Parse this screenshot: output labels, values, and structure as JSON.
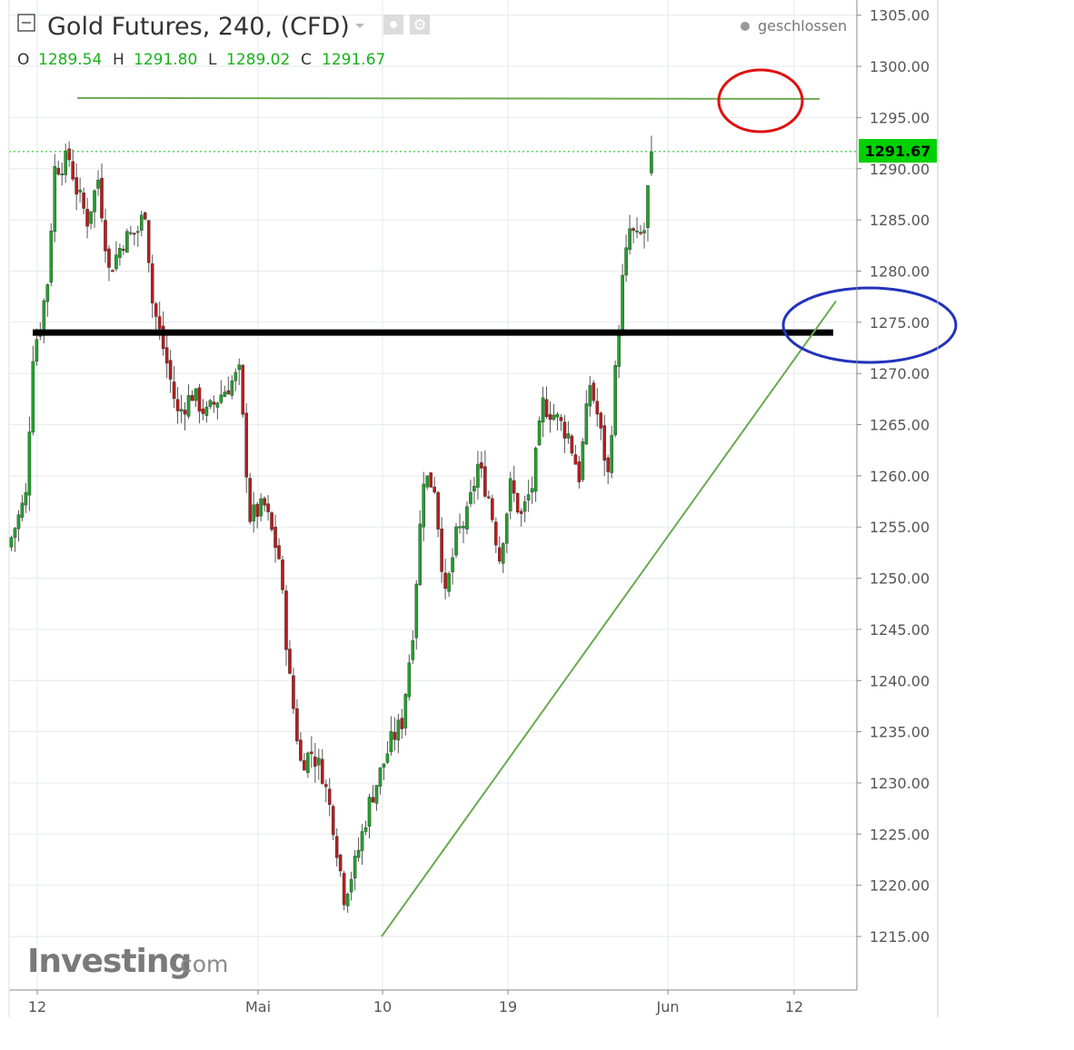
{
  "header": {
    "title": "Gold Futures, 240, (CFD)",
    "ohlc": [
      {
        "key": "O",
        "value": "1289.54"
      },
      {
        "key": "H",
        "value": "1291.80"
      },
      {
        "key": "L",
        "value": "1289.02"
      },
      {
        "key": "C",
        "value": "1291.67"
      }
    ],
    "status": "geschlossen"
  },
  "watermark": {
    "brand": "Investing",
    "suffix": ".com"
  },
  "colors": {
    "up": "#22a02a",
    "down": "#b71c1c",
    "grid": "#e6e9ee",
    "trendline": "#6aaa50",
    "support": "#000000",
    "last_price_bg": "#00d100",
    "circle_red": "#e01010",
    "circle_blue": "#2233bb"
  },
  "chart_data": {
    "type": "candlestick",
    "title": "Gold Futures, 240, (CFD)",
    "y_ticks": [
      "1215.00",
      "1220.00",
      "1225.00",
      "1230.00",
      "1235.00",
      "1240.00",
      "1245.00",
      "1250.00",
      "1255.00",
      "1260.00",
      "1265.00",
      "1270.00",
      "1275.00",
      "1280.00",
      "1285.00",
      "1290.00",
      "1295.00",
      "1300.00",
      "1305.00"
    ],
    "ylim": [
      1210,
      1306
    ],
    "x_ticks": [
      "12",
      "Mai",
      "10",
      "19",
      "Jun",
      "12"
    ],
    "last_price": "1291.67",
    "anchors": [
      [
        0,
        1254
      ],
      [
        4,
        1258
      ],
      [
        6,
        1272
      ],
      [
        8,
        1275
      ],
      [
        10,
        1279
      ],
      [
        12,
        1290
      ],
      [
        16,
        1291
      ],
      [
        18,
        1288
      ],
      [
        21,
        1285
      ],
      [
        24,
        1289
      ],
      [
        27,
        1280
      ],
      [
        31,
        1283
      ],
      [
        35,
        1284
      ],
      [
        37,
        1286
      ],
      [
        39,
        1277
      ],
      [
        43,
        1271
      ],
      [
        46,
        1266
      ],
      [
        50,
        1268
      ],
      [
        54,
        1266
      ],
      [
        58,
        1268
      ],
      [
        63,
        1270
      ],
      [
        66,
        1256
      ],
      [
        70,
        1257
      ],
      [
        74,
        1252
      ],
      [
        77,
        1240
      ],
      [
        80,
        1232
      ],
      [
        83,
        1233
      ],
      [
        86,
        1231
      ],
      [
        89,
        1226
      ],
      [
        92,
        1219
      ],
      [
        95,
        1222
      ],
      [
        99,
        1228
      ],
      [
        102,
        1231
      ],
      [
        105,
        1234
      ],
      [
        108,
        1236
      ],
      [
        111,
        1245
      ],
      [
        114,
        1260
      ],
      [
        117,
        1259
      ],
      [
        120,
        1248
      ],
      [
        123,
        1254
      ],
      [
        126,
        1256
      ],
      [
        129,
        1261
      ],
      [
        132,
        1258
      ],
      [
        135,
        1252
      ],
      [
        138,
        1259
      ],
      [
        141,
        1256
      ],
      [
        144,
        1259
      ],
      [
        147,
        1267
      ],
      [
        150,
        1266
      ],
      [
        154,
        1264
      ],
      [
        157,
        1260
      ],
      [
        160,
        1269
      ],
      [
        162,
        1266
      ],
      [
        165,
        1260
      ],
      [
        167,
        1270
      ],
      [
        169,
        1279
      ],
      [
        171,
        1284
      ],
      [
        173,
        1283
      ],
      [
        175,
        1284
      ],
      [
        177,
        1291.67
      ]
    ],
    "annotations": {
      "resistance_line": {
        "y": 1297
      },
      "support_line": {
        "y": 1274
      },
      "trendline": {
        "from": {
          "date_index": 92,
          "y": 1215
        },
        "to": {
          "date_index": 206,
          "y": 1276
        }
      }
    }
  }
}
